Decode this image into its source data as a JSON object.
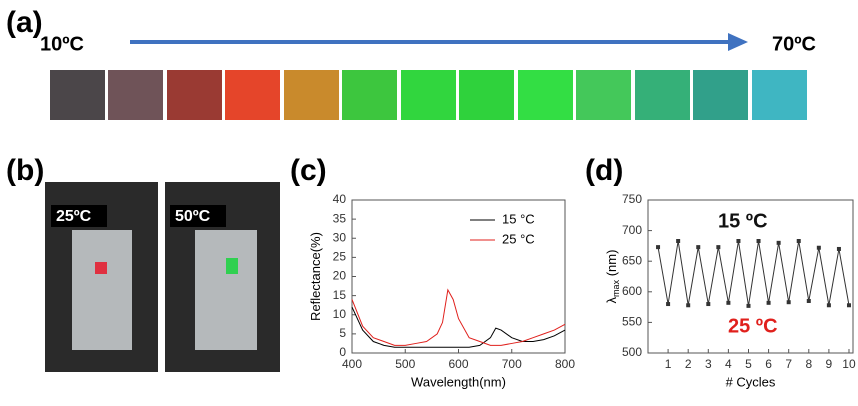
{
  "panels": {
    "a": {
      "label": "(a)",
      "start": "10ºC",
      "end": "70ºC"
    },
    "b": {
      "label": "(b)",
      "photos": [
        "25ºC",
        "50ºC"
      ]
    },
    "c": {
      "label": "(c)"
    },
    "d": {
      "label": "(d)"
    }
  },
  "chart_data": [
    {
      "type": "line",
      "xlabel": "Wavelength(nm)",
      "ylabel": "Reflectance(%)",
      "x": [
        400,
        420,
        440,
        460,
        480,
        500,
        520,
        540,
        560,
        570,
        580,
        590,
        600,
        620,
        640,
        660,
        670,
        680,
        700,
        720,
        740,
        760,
        780,
        800
      ],
      "series": [
        {
          "name": "15 °C",
          "color": "#000000",
          "values": [
            12,
            6,
            3,
            2,
            1.5,
            1.5,
            1.5,
            1.5,
            1.5,
            1.5,
            1.5,
            1.5,
            1.5,
            1.5,
            2,
            4,
            6.5,
            6,
            4,
            3,
            3,
            3.5,
            4.5,
            6
          ]
        },
        {
          "name": "25 °C",
          "color": "#e0201c",
          "values": [
            14,
            7,
            4,
            3,
            2,
            2,
            2.5,
            3,
            5,
            8,
            16.5,
            14,
            9,
            4,
            3,
            2,
            2,
            2,
            2.5,
            3,
            4,
            5,
            6,
            7.5
          ]
        }
      ],
      "xlim": [
        400,
        800
      ],
      "xticks": [
        400,
        500,
        600,
        700,
        800
      ],
      "ylim": [
        0,
        40
      ],
      "yticks": [
        0,
        5,
        10,
        15,
        20,
        25,
        30,
        35,
        40
      ],
      "legend": "upper right",
      "grid": false
    },
    {
      "type": "line",
      "xlabel": "# Cycles",
      "ylabel": "λ",
      "ylabel_sub": "max",
      "ylabel_unit": " (nm)",
      "x": [
        0.5,
        1,
        1.5,
        2,
        2.5,
        3,
        3.5,
        4,
        4.5,
        5,
        5.5,
        6,
        6.5,
        7,
        7.5,
        8,
        8.5,
        9,
        9.5,
        10
      ],
      "series": [
        {
          "color": "#333333",
          "values": [
            673,
            580,
            683,
            578,
            673,
            580,
            673,
            582,
            683,
            577,
            683,
            582,
            680,
            583,
            683,
            585,
            672,
            578,
            670,
            578
          ]
        }
      ],
      "xlim": [
        0,
        10.2
      ],
      "xticks": [
        1,
        2,
        3,
        4,
        5,
        6,
        7,
        8,
        9,
        10
      ],
      "ylim": [
        500,
        750
      ],
      "yticks": [
        500,
        550,
        600,
        650,
        700,
        750
      ],
      "grid": false,
      "markers": true,
      "annotations": [
        {
          "text": "15 ºC",
          "color": "#111111"
        },
        {
          "text": "25 ºC",
          "color": "#e0201c"
        }
      ]
    }
  ]
}
